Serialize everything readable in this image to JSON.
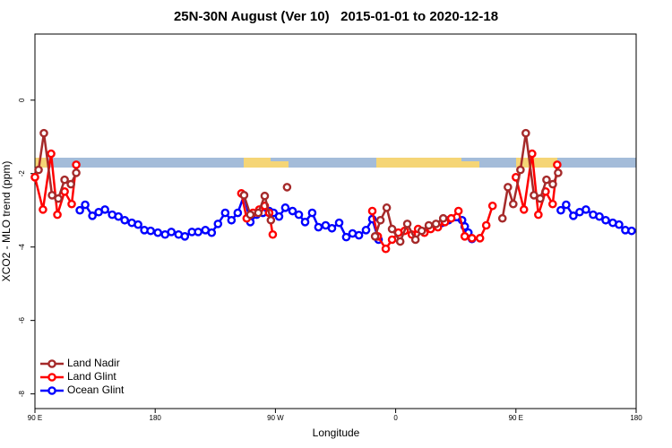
{
  "chart_data": {
    "type": "line",
    "title": "25N-30N August (Ver 10)   2015-01-01 to 2020-12-18",
    "xlabel": "Longitude",
    "ylabel": "XCO2 - MLO trend (ppm)",
    "xlim": [
      90,
      540
    ],
    "xticks": [
      {
        "value": 90,
        "label": "90 E"
      },
      180,
      {
        "value": 270,
        "label": "90 W"
      },
      {
        "value": 360,
        "label": "0"
      },
      {
        "value": 450,
        "label": "90 E"
      },
      {
        "value": 540,
        "label": "180"
      }
    ],
    "ylim": [
      -8.4,
      1.8
    ],
    "yticks": [
      0,
      -2,
      -4,
      -6,
      -8
    ],
    "legend": "bottom-left",
    "series": [
      {
        "name": "Land Nadir",
        "color": "#a52a2a",
        "x": [
          92.7,
          96.7,
          102.8,
          107.5,
          112.2,
          116.9,
          120.9,
          null,
          246.5,
          251.2,
          257.2,
          262,
          266.6,
          null,
          278.7,
          null,
          344.6,
          348.6,
          353.3,
          357.3,
          363.4,
          368.7,
          374.8,
          379.5,
          384.8,
          390.2,
          395.6,
          null,
          439.9,
          444,
          448,
          453.4,
          457.4,
          463.5,
          468.2,
          472.9,
          477.6,
          481.6
        ],
        "values": [
          -1.9,
          -0.9,
          -2.59,
          -2.68,
          -2.17,
          -2.29,
          -1.98,
          null,
          -2.59,
          -3.12,
          -3.07,
          -2.61,
          -3.27,
          null,
          -2.37,
          null,
          -3.71,
          -3.27,
          -2.93,
          -3.51,
          -3.85,
          -3.37,
          -3.8,
          -3.56,
          -3.41,
          -3.37,
          -3.22,
          null,
          -3.22,
          -2.37,
          -2.83,
          -1.9,
          -0.9,
          -2.59,
          -2.68,
          -2.17,
          -2.29,
          -1.98
        ]
      },
      {
        "name": "Land Glint",
        "color": "#ff0000",
        "x": [
          90,
          96,
          102.1,
          106.8,
          112.2,
          117.5,
          120.9,
          null,
          244.5,
          248.5,
          253.2,
          257.9,
          262,
          265.3,
          268,
          null,
          342.5,
          346.6,
          352.6,
          357.3,
          362,
          366.7,
          372.1,
          376.8,
          381.5,
          386.2,
          391.6,
          396.9,
          401.6,
          407,
          411.7,
          417.1,
          423.1,
          427.8,
          432.5,
          null,
          450,
          456,
          462.1,
          466.8,
          472.2,
          477.5,
          480.9
        ],
        "values": [
          -2.1,
          -2.98,
          -1.46,
          -3.12,
          -2.49,
          -2.83,
          -1.76,
          null,
          -2.54,
          -3.22,
          -3.07,
          -2.98,
          -2.88,
          -3.07,
          -3.66,
          null,
          -3.02,
          -3.71,
          -4.05,
          -3.8,
          -3.61,
          -3.56,
          -3.66,
          -3.51,
          -3.61,
          -3.51,
          -3.46,
          -3.32,
          -3.22,
          -3.02,
          -3.71,
          -3.76,
          -3.76,
          -3.41,
          -2.88,
          null,
          -2.1,
          -2.98,
          -1.46,
          -3.12,
          -2.49,
          -2.83,
          -1.76
        ]
      },
      {
        "name": "Ocean Glint",
        "color": "#0000ff",
        "x": [
          123.6,
          127.6,
          133,
          137.7,
          142.4,
          147.8,
          152.5,
          157.2,
          162.5,
          167.2,
          171.9,
          176.6,
          182,
          187.4,
          192.1,
          197.5,
          202.2,
          207.5,
          212.2,
          217.6,
          222.3,
          227,
          232.4,
          237.1,
          241.8,
          246.5,
          251.2,
          255.9,
          260.6,
          265.3,
          268.6,
          272.7,
          277.4,
          282.8,
          287.5,
          292.2,
          297.5,
          302.2,
          307.6,
          312.3,
          317.7,
          323,
          327.7,
          332.5,
          337.8,
          342.5,
          347.2,
          null,
          394.9,
          399.6,
          409.7,
          411.7,
          414.4,
          417.1,
          null,
          483.6,
          487.6,
          493,
          497.7,
          502.4,
          507.8,
          512.5,
          517.2,
          522.5,
          527.2,
          531.9,
          536.6
        ],
        "values": [
          -3,
          -2.85,
          -3.15,
          -3.05,
          -2.98,
          -3.12,
          -3.17,
          -3.27,
          -3.34,
          -3.39,
          -3.54,
          -3.56,
          -3.61,
          -3.66,
          -3.59,
          -3.66,
          -3.71,
          -3.59,
          -3.59,
          -3.54,
          -3.61,
          -3.37,
          -3.07,
          -3.27,
          -3.07,
          -2.59,
          -3.32,
          -3.12,
          -3.07,
          -3.02,
          -3.07,
          -3.17,
          -2.93,
          -3.02,
          -3.12,
          -3.32,
          -3.07,
          -3.46,
          -3.41,
          -3.49,
          -3.34,
          -3.73,
          -3.63,
          -3.68,
          -3.54,
          -3.24,
          -3.8,
          null,
          -3.34,
          -3.27,
          -3.27,
          -3.44,
          -3.61,
          -3.78,
          null,
          -3,
          -2.85,
          -3.15,
          -3.05,
          -2.98,
          -3.12,
          -3.17,
          -3.27,
          -3.34,
          -3.39,
          -3.54,
          -3.56
        ]
      }
    ]
  }
}
